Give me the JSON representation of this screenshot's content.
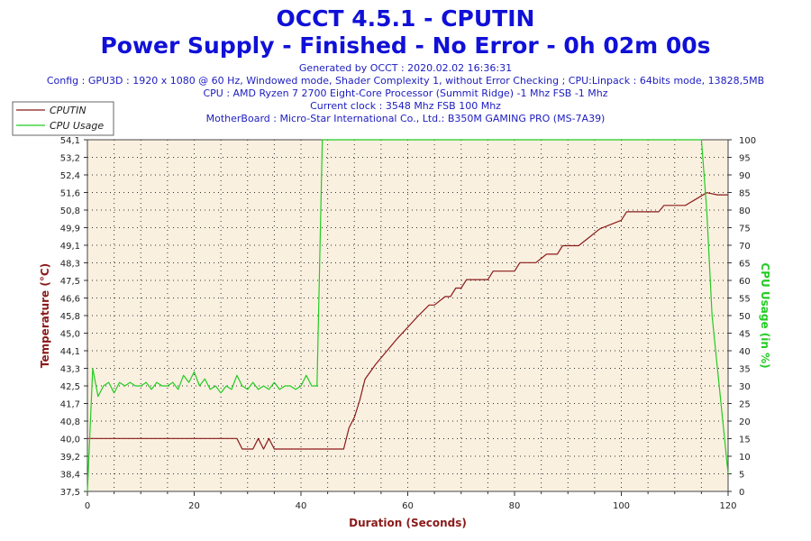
{
  "header": {
    "title": "OCCT 4.5.1 - CPUTIN",
    "subtitle": "Power Supply - Finished - No Error - 0h 02m 00s",
    "info_lines": [
      "Generated by OCCT : 2020.02.02 16:36:31",
      "Config : GPU3D : 1920 x 1080 @ 60 Hz, Windowed mode, Shader Complexity 1, without Error Checking ; CPU:Linpack : 64bits mode, 13828,5MB",
      "CPU : AMD Ryzen 7 2700 Eight-Core Processor (Summit Ridge) -1 Mhz FSB -1 Mhz",
      "Current clock : 3548 Mhz FSB 100 Mhz",
      "MotherBoard : Micro-Star International Co., Ltd.: B350M GAMING PRO (MS-7A39)"
    ]
  },
  "colors": {
    "temp": "#8b1a1a",
    "usage": "#22cc22",
    "plot_bg": "#faf0e0",
    "grid": "#333333",
    "axis_text": "#222222",
    "xlabel": "#8b1a1a",
    "title": "#1010d8"
  },
  "chart_data": {
    "type": "line",
    "xlabel": "Duration (Seconds)",
    "ylabel_left": "Temperature (°C)",
    "ylabel_right": "CPU Usage (in %)",
    "xlim": [
      0,
      120
    ],
    "x_ticks": [
      "0",
      "20",
      "40",
      "60",
      "80",
      "100",
      "120"
    ],
    "ylim_left": [
      37.5,
      54.1
    ],
    "y_ticks_left": [
      "37,5",
      "38,4",
      "39,2",
      "40,0",
      "40,8",
      "41,7",
      "42,5",
      "43,3",
      "44,1",
      "45,0",
      "45,8",
      "46,6",
      "47,5",
      "48,3",
      "49,1",
      "49,9",
      "50,8",
      "51,6",
      "52,4",
      "53,2",
      "54,1"
    ],
    "ylim_right": [
      0,
      100
    ],
    "y_ticks_right": [
      "0",
      "5",
      "10",
      "15",
      "20",
      "25",
      "30",
      "35",
      "40",
      "45",
      "50",
      "55",
      "60",
      "65",
      "70",
      "75",
      "80",
      "85",
      "90",
      "95",
      "100"
    ],
    "grid": true,
    "legend_position": "top-left",
    "series": [
      {
        "name": "CPUTIN",
        "axis": "left",
        "x": [
          0,
          1,
          28,
          29,
          30,
          31,
          32,
          33,
          34,
          35,
          36,
          37,
          47,
          48,
          49,
          50,
          51,
          52,
          54,
          58,
          62,
          64,
          65,
          67,
          68,
          69,
          70,
          71,
          75,
          76,
          80,
          81,
          82,
          84,
          86,
          88,
          89,
          92,
          94,
          96,
          100,
          101,
          107,
          108,
          112,
          114,
          116,
          118,
          120
        ],
        "y": [
          40.0,
          40.0,
          40.0,
          39.5,
          39.5,
          39.5,
          40.0,
          39.5,
          40.0,
          39.5,
          39.5,
          39.5,
          39.5,
          39.5,
          40.5,
          41.0,
          41.8,
          42.8,
          43.5,
          44.7,
          45.8,
          46.3,
          46.3,
          46.7,
          46.7,
          47.1,
          47.1,
          47.5,
          47.5,
          47.9,
          47.9,
          48.3,
          48.3,
          48.3,
          48.7,
          48.7,
          49.1,
          49.1,
          49.5,
          49.9,
          50.3,
          50.7,
          50.7,
          51.0,
          51.0,
          51.3,
          51.6,
          51.5,
          51.5
        ]
      },
      {
        "name": "CPU Usage",
        "axis": "right",
        "x": [
          0,
          1,
          2,
          3,
          4,
          5,
          6,
          7,
          8,
          9,
          10,
          11,
          12,
          13,
          14,
          15,
          16,
          17,
          18,
          19,
          20,
          21,
          22,
          23,
          24,
          25,
          26,
          27,
          28,
          29,
          30,
          31,
          32,
          33,
          34,
          35,
          36,
          37,
          38,
          39,
          40,
          41,
          42,
          43,
          44,
          45,
          50,
          60,
          70,
          80,
          90,
          100,
          110,
          115,
          116,
          117,
          119,
          120
        ],
        "y": [
          0,
          35,
          27,
          30,
          31,
          28,
          31,
          30,
          31,
          30,
          30,
          31,
          29,
          31,
          30,
          30,
          31,
          29,
          33,
          31,
          34,
          30,
          32,
          29,
          30,
          28,
          30,
          29,
          33,
          30,
          29,
          31,
          29,
          30,
          29,
          31,
          29,
          30,
          30,
          29,
          30,
          33,
          30,
          30,
          100,
          100,
          100,
          100,
          100,
          100,
          100,
          100,
          100,
          100,
          80,
          50,
          20,
          5
        ]
      }
    ]
  }
}
